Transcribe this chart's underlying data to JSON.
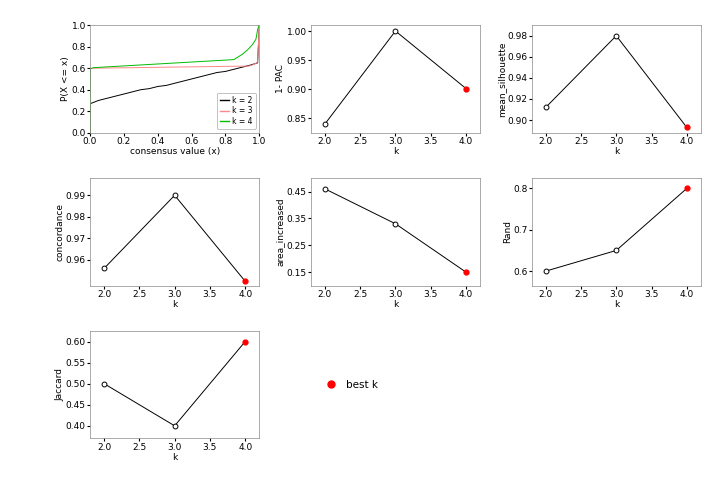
{
  "cdf": {
    "k2_x": [
      0.0,
      0.001,
      0.05,
      0.1,
      0.15,
      0.2,
      0.25,
      0.3,
      0.35,
      0.4,
      0.45,
      0.5,
      0.55,
      0.6,
      0.65,
      0.7,
      0.75,
      0.8,
      0.85,
      0.9,
      0.95,
      0.99,
      1.0
    ],
    "k2_y": [
      0.0,
      0.27,
      0.3,
      0.32,
      0.34,
      0.36,
      0.38,
      0.4,
      0.41,
      0.43,
      0.44,
      0.46,
      0.48,
      0.5,
      0.52,
      0.54,
      0.56,
      0.57,
      0.59,
      0.61,
      0.63,
      0.65,
      1.0
    ],
    "k3_x": [
      0.0,
      0.001,
      0.02,
      0.94,
      0.96,
      0.98,
      0.99,
      1.0
    ],
    "k3_y": [
      0.0,
      0.595,
      0.6,
      0.62,
      0.63,
      0.645,
      0.66,
      1.0
    ],
    "k4_x": [
      0.0,
      0.001,
      0.02,
      0.85,
      0.9,
      0.93,
      0.96,
      0.98,
      0.99,
      1.0
    ],
    "k4_y": [
      0.0,
      0.595,
      0.605,
      0.68,
      0.73,
      0.77,
      0.82,
      0.87,
      0.96,
      1.0
    ],
    "color_k2": "#000000",
    "color_k3": "#ff8888",
    "color_k4": "#00bb00",
    "xlabel": "consensus value (x)",
    "ylabel": "P(X <= x)",
    "legend_labels": [
      "k = 2",
      "k = 3",
      "k = 4"
    ]
  },
  "pac": {
    "k": [
      2,
      3,
      4
    ],
    "values": [
      0.84,
      1.0,
      0.901
    ],
    "best_k_idx": 2,
    "ylabel": "1- PAC",
    "xlabel": "k",
    "yticks": [
      0.85,
      0.9,
      0.95,
      1.0
    ],
    "ylim": [
      0.825,
      1.01
    ]
  },
  "silhouette": {
    "k": [
      2,
      3,
      4
    ],
    "values": [
      0.912,
      0.98,
      0.893
    ],
    "best_k_idx": 2,
    "ylabel": "mean_silhouette",
    "xlabel": "k",
    "yticks": [
      0.9,
      0.92,
      0.94,
      0.96,
      0.98
    ],
    "ylim": [
      0.888,
      0.99
    ]
  },
  "concordance": {
    "k": [
      2,
      3,
      4
    ],
    "values": [
      0.956,
      0.99,
      0.95
    ],
    "best_k_idx": 2,
    "ylabel": "concordance",
    "xlabel": "k",
    "yticks": [
      0.96,
      0.97,
      0.98,
      0.99
    ],
    "ylim": [
      0.948,
      0.998
    ]
  },
  "area_increased": {
    "k": [
      2,
      3,
      4
    ],
    "values": [
      0.46,
      0.33,
      0.15
    ],
    "best_k_idx": 2,
    "ylabel": "area_increased",
    "xlabel": "k",
    "yticks": [
      0.15,
      0.25,
      0.35,
      0.45
    ],
    "ylim": [
      0.1,
      0.5
    ]
  },
  "rand": {
    "k": [
      2,
      3,
      4
    ],
    "values": [
      0.6,
      0.65,
      0.8
    ],
    "best_k_idx": 2,
    "ylabel": "Rand",
    "xlabel": "k",
    "yticks": [
      0.6,
      0.7,
      0.8
    ],
    "ylim": [
      0.565,
      0.825
    ]
  },
  "jaccard": {
    "k": [
      2,
      3,
      4
    ],
    "values": [
      0.5,
      0.4,
      0.6
    ],
    "best_k_idx": 2,
    "ylabel": "Jaccard",
    "xlabel": "k",
    "yticks": [
      0.4,
      0.45,
      0.5,
      0.55,
      0.6
    ],
    "ylim": [
      0.37,
      0.625
    ]
  },
  "best_color": "#ff0000",
  "line_color": "#000000",
  "bg_color": "#ffffff",
  "font_size": 6.5
}
